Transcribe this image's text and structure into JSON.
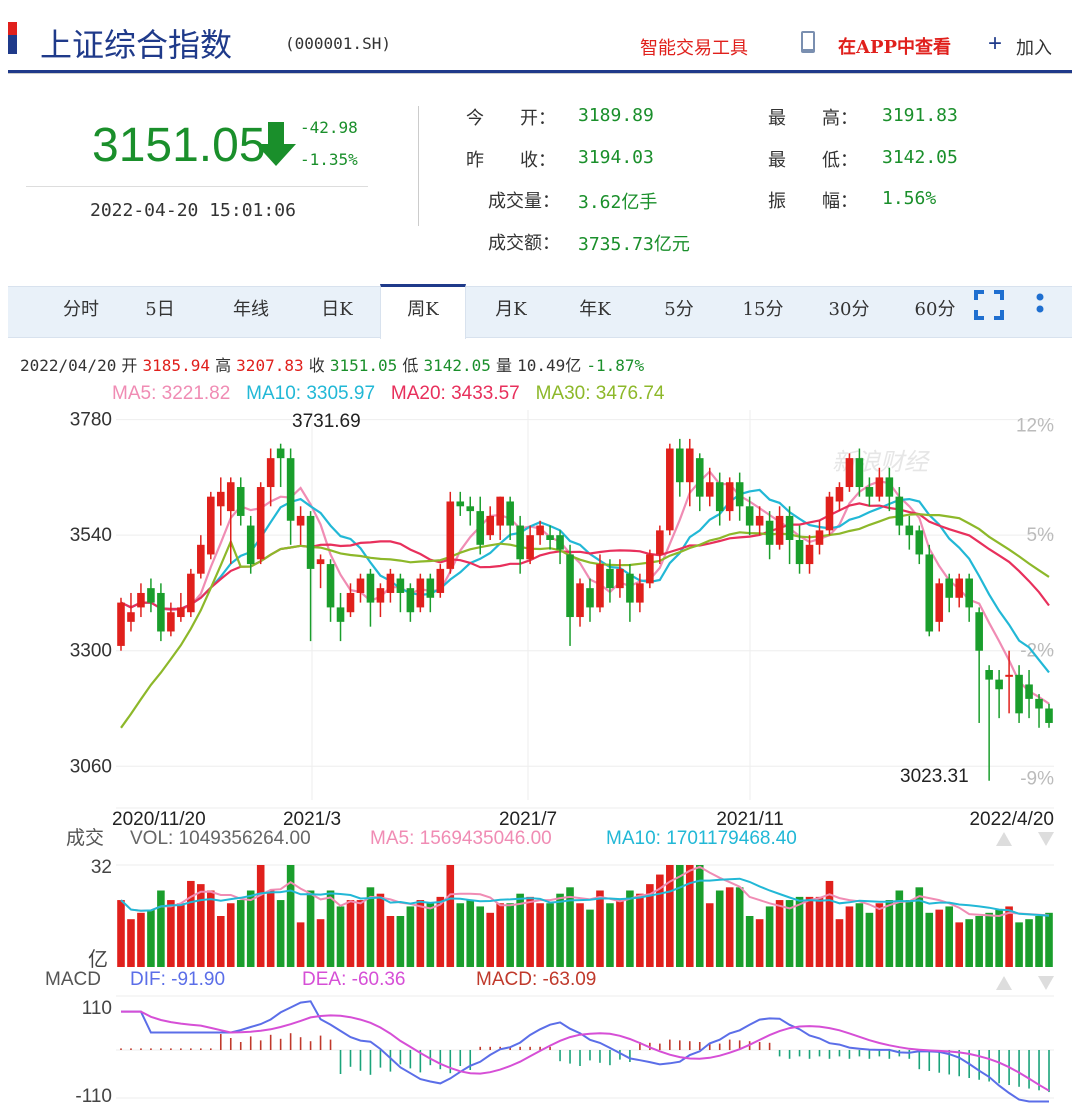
{
  "header": {
    "title": "上证综合指数",
    "code": "(000001.SH)",
    "smart_tool": "智能交易工具",
    "app_view": "在APP中查看",
    "add_label": "加入",
    "icons": [
      "phone-icon",
      "plus-icon"
    ]
  },
  "quote": {
    "price": "3151.05",
    "change": "-42.98",
    "change_pct": "-1.35%",
    "datetime": "2022-04-20 15:01:06",
    "open_label": "今　　开：",
    "open": "3189.89",
    "prev_close_label": "昨　　收：",
    "prev_close": "3194.03",
    "volume_label": "成交量：",
    "volume": "3.62亿手",
    "amount_label": "成交额：",
    "amount": "3735.73亿元",
    "high_label": "最　　高：",
    "high": "3191.83",
    "low_label": "最　　低：",
    "low": "3142.05",
    "amplitude_label": "振　　幅：",
    "amplitude": "1.56%",
    "colors": {
      "up": "#e0201c",
      "down": "#1a8f2b",
      "brand": "#1f3a8a"
    }
  },
  "tabs": [
    "分时",
    "5日",
    "年线",
    "日K",
    "周K",
    "月K",
    "年K",
    "5分",
    "15分",
    "30分",
    "60分"
  ],
  "active_tab": "周K",
  "ohlc": {
    "date": "2022/04/20",
    "open_label": "开",
    "open": "3185.94",
    "high_label": "高",
    "high": "3207.83",
    "close_label": "收",
    "close": "3151.05",
    "low_label": "低",
    "low": "3142.05",
    "vol_label": "量",
    "vol": "10.49亿",
    "pct": "-1.87%"
  },
  "ma": {
    "ma5": "MA5: 3221.82",
    "ma10": "MA10: 3305.97",
    "ma20": "MA20: 3433.57",
    "ma30": "MA30: 3476.74",
    "colors": {
      "ma5": "#f08cb4",
      "ma10": "#22b8d6",
      "ma20": "#e8305c",
      "ma30": "#8db82a"
    }
  },
  "chart_data": {
    "type": "candlestick",
    "y_ticks": [
      "3780",
      "3540",
      "3300",
      "3060"
    ],
    "pct_ticks": [
      "12%",
      "5%",
      "-2%",
      "-9%"
    ],
    "x_ticks": [
      "2020/11/20",
      "2021/3",
      "2021/7",
      "2021/11",
      "2022/4/20"
    ],
    "max_label": "3731.69",
    "min_label": "3023.31",
    "watermark": "新浪财经",
    "ylim": [
      2990,
      3800
    ]
  },
  "volume_panel": {
    "title": "成交",
    "vol": "VOL: 1049356264.00",
    "ma5": "MA5: 1569435046.00",
    "ma10": "MA10: 1701179468.40",
    "y_top": "32",
    "unit": "亿"
  },
  "macd_panel": {
    "title": "MACD",
    "dif": "DIF: -91.90",
    "dea": "DEA: -60.36",
    "macd": "MACD: -63.09",
    "y_top": "110",
    "y_bottom": "-110"
  }
}
